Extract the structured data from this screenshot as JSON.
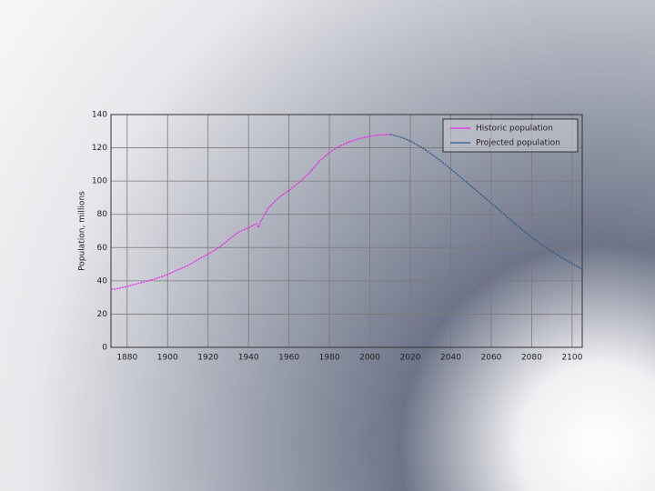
{
  "chart_data": {
    "type": "line",
    "ylabel": "Population, millions",
    "xlim": [
      1872,
      2105
    ],
    "ylim": [
      0,
      140
    ],
    "xticks": [
      1880,
      1900,
      1920,
      1940,
      1960,
      1980,
      2000,
      2020,
      2040,
      2060,
      2080,
      2100
    ],
    "yticks": [
      0,
      20,
      40,
      60,
      80,
      100,
      120,
      140
    ],
    "grid": true,
    "legend": "upper right",
    "series": [
      {
        "name": "Historic population",
        "color": "#ee22ee",
        "x": [
          1872,
          1875,
          1880,
          1885,
          1890,
          1895,
          1900,
          1905,
          1910,
          1915,
          1920,
          1925,
          1930,
          1935,
          1940,
          1944,
          1945,
          1946,
          1950,
          1955,
          1960,
          1965,
          1970,
          1975,
          1980,
          1985,
          1990,
          1995,
          2000,
          2005,
          2010
        ],
        "values": [
          34.8,
          35.3,
          36.6,
          38.3,
          39.9,
          41.6,
          43.8,
          46.6,
          49.2,
          52.8,
          56.0,
          59.7,
          64.5,
          69.3,
          71.9,
          74.4,
          72.1,
          75.8,
          84.1,
          90.1,
          94.3,
          99.2,
          104.7,
          111.9,
          117.1,
          121.0,
          123.6,
          125.6,
          126.9,
          127.8,
          128.1
        ]
      },
      {
        "name": "Projected population",
        "color": "#2a5a8a",
        "x": [
          2010,
          2015,
          2020,
          2025,
          2030,
          2035,
          2040,
          2045,
          2050,
          2055,
          2060,
          2065,
          2070,
          2075,
          2080,
          2085,
          2090,
          2095,
          2100,
          2105
        ],
        "values": [
          128.1,
          126.6,
          124.1,
          120.7,
          116.6,
          112.1,
          107.3,
          102.2,
          97.1,
          91.9,
          86.7,
          81.4,
          76.2,
          71.0,
          66.2,
          61.8,
          57.7,
          53.9,
          50.4,
          47.0
        ]
      }
    ]
  }
}
